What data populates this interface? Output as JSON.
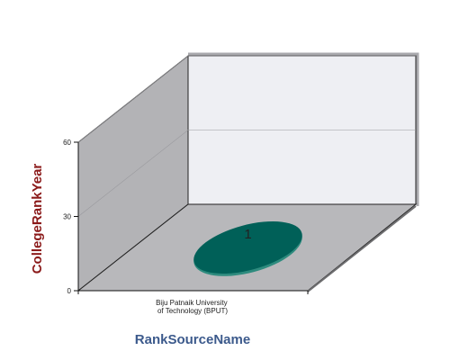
{
  "chart_data": {
    "type": "scatter",
    "view": "3d",
    "xlabel": "RankSourceName",
    "ylabel": "CollegeRankYear",
    "categories": [
      "Biju Patnaik University of Technology (BPUT)"
    ],
    "category_lines": [
      "Biju Patnaik University",
      "of Technology (BPUT)"
    ],
    "yticks": [
      "0",
      "30",
      "60"
    ],
    "ylim": [
      0,
      60
    ],
    "points": [
      {
        "category": "Biju Patnaik University of Technology (BPUT)",
        "y": 0,
        "label": "1"
      }
    ],
    "grid": true,
    "colors": {
      "axis_title": "#8B1A1A",
      "xaxis_title": "#3C5A8C",
      "back_wall": "#EEEFF3",
      "side_wall": "#B3B3B6",
      "floor": "#B8B8BB",
      "bubble": "#006058",
      "bubble_edge": "#2E8B7E"
    }
  }
}
